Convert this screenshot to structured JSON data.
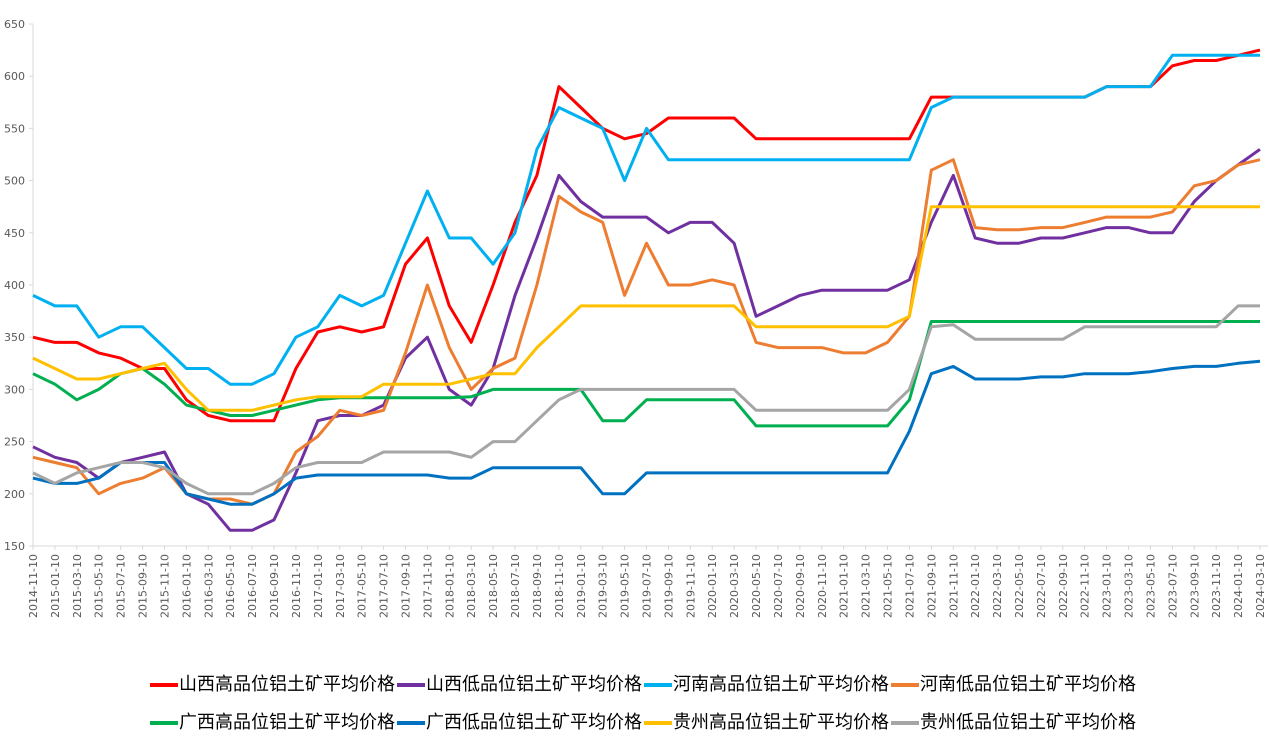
{
  "chart_data": {
    "type": "line",
    "legend": "bottom",
    "categories": [
      "2014-11-10",
      "2015-01-10",
      "2015-03-10",
      "2015-05-10",
      "2015-07-10",
      "2015-09-10",
      "2015-11-10",
      "2016-01-10",
      "2016-03-10",
      "2016-05-10",
      "2016-07-10",
      "2016-09-10",
      "2016-11-10",
      "2017-01-10",
      "2017-03-10",
      "2017-05-10",
      "2017-07-10",
      "2017-09-10",
      "2017-11-10",
      "2018-01-10",
      "2018-03-10",
      "2018-05-10",
      "2018-07-10",
      "2018-09-10",
      "2018-11-10",
      "2019-01-10",
      "2019-03-10",
      "2019-05-10",
      "2019-07-10",
      "2019-09-10",
      "2019-11-10",
      "2020-01-10",
      "2020-03-10",
      "2020-05-10",
      "2020-07-10",
      "2020-09-10",
      "2020-11-10",
      "2021-01-10",
      "2021-03-10",
      "2021-05-10",
      "2021-07-10",
      "2021-09-10",
      "2021-11-10",
      "2022-01-10",
      "2022-03-10",
      "2022-05-10",
      "2022-07-10",
      "2022-09-10",
      "2022-11-10",
      "2023-01-10",
      "2023-03-10",
      "2023-05-10",
      "2023-07-10",
      "2023-09-10",
      "2023-11-10",
      "2024-01-10",
      "2024-03-10"
    ],
    "ylim": [
      150,
      650
    ],
    "yticks": [
      150,
      200,
      250,
      300,
      350,
      400,
      450,
      500,
      550,
      600,
      650
    ],
    "series": [
      {
        "name": "山西高品位铝土矿平均价格",
        "color": "#ff0000",
        "values": [
          350,
          345,
          345,
          335,
          330,
          320,
          320,
          290,
          275,
          270,
          270,
          270,
          320,
          355,
          360,
          355,
          360,
          420,
          445,
          380,
          345,
          400,
          460,
          505,
          590,
          570,
          550,
          540,
          545,
          560,
          560,
          560,
          560,
          540,
          540,
          540,
          540,
          540,
          540,
          540,
          540,
          580,
          580,
          580,
          580,
          580,
          580,
          580,
          580,
          590,
          590,
          590,
          610,
          615,
          615,
          620,
          625
        ]
      },
      {
        "name": "山西低品位铝土矿平均价格",
        "color": "#7030a0",
        "values": [
          245,
          235,
          230,
          215,
          230,
          235,
          240,
          200,
          190,
          165,
          165,
          175,
          220,
          270,
          275,
          275,
          285,
          330,
          350,
          300,
          285,
          320,
          390,
          445,
          505,
          480,
          465,
          465,
          465,
          450,
          460,
          460,
          440,
          370,
          380,
          390,
          395,
          395,
          395,
          395,
          405,
          460,
          505,
          445,
          440,
          440,
          445,
          445,
          450,
          455,
          455,
          450,
          450,
          480,
          500,
          515,
          530
        ]
      },
      {
        "name": "河南高品位铝土矿平均价格",
        "color": "#00b0f0",
        "values": [
          390,
          380,
          380,
          350,
          360,
          360,
          340,
          320,
          320,
          305,
          305,
          315,
          350,
          360,
          390,
          380,
          390,
          440,
          490,
          445,
          445,
          420,
          450,
          530,
          570,
          560,
          550,
          500,
          550,
          520,
          520,
          520,
          520,
          520,
          520,
          520,
          520,
          520,
          520,
          520,
          520,
          570,
          580,
          580,
          580,
          580,
          580,
          580,
          580,
          590,
          590,
          590,
          620,
          620,
          620,
          620,
          620
        ]
      },
      {
        "name": "河南低品位铝土矿平均价格",
        "color": "#ed7d31",
        "values": [
          235,
          230,
          225,
          200,
          210,
          215,
          225,
          200,
          195,
          195,
          190,
          200,
          240,
          255,
          280,
          275,
          280,
          335,
          400,
          340,
          300,
          320,
          330,
          400,
          485,
          470,
          460,
          390,
          440,
          400,
          400,
          405,
          400,
          345,
          340,
          340,
          340,
          335,
          335,
          345,
          370,
          510,
          520,
          455,
          453,
          453,
          455,
          455,
          460,
          465,
          465,
          465,
          470,
          495,
          500,
          515,
          520
        ]
      },
      {
        "name": "广西高品位铝土矿平均价格",
        "color": "#00b050",
        "values": [
          315,
          305,
          290,
          300,
          315,
          320,
          305,
          285,
          280,
          275,
          275,
          280,
          285,
          290,
          292,
          292,
          292,
          292,
          292,
          292,
          293,
          300,
          300,
          300,
          300,
          300,
          270,
          270,
          290,
          290,
          290,
          290,
          290,
          265,
          265,
          265,
          265,
          265,
          265,
          265,
          290,
          365,
          365,
          365,
          365,
          365,
          365,
          365,
          365,
          365,
          365,
          365,
          365,
          365,
          365,
          365,
          365
        ]
      },
      {
        "name": "广西低品位铝土矿平均价格",
        "color": "#0070c0",
        "values": [
          215,
          210,
          210,
          215,
          230,
          230,
          230,
          200,
          195,
          190,
          190,
          200,
          215,
          218,
          218,
          218,
          218,
          218,
          218,
          215,
          215,
          225,
          225,
          225,
          225,
          225,
          200,
          200,
          220,
          220,
          220,
          220,
          220,
          220,
          220,
          220,
          220,
          220,
          220,
          220,
          260,
          315,
          322,
          310,
          310,
          310,
          312,
          312,
          315,
          315,
          315,
          317,
          320,
          322,
          322,
          325,
          327
        ]
      },
      {
        "name": "贵州高品位铝土矿平均价格",
        "color": "#ffc000",
        "values": [
          330,
          320,
          310,
          310,
          315,
          320,
          325,
          300,
          280,
          280,
          280,
          285,
          290,
          293,
          293,
          293,
          305,
          305,
          305,
          305,
          310,
          315,
          315,
          340,
          360,
          380,
          380,
          380,
          380,
          380,
          380,
          380,
          380,
          360,
          360,
          360,
          360,
          360,
          360,
          360,
          370,
          475,
          475,
          475,
          475,
          475,
          475,
          475,
          475,
          475,
          475,
          475,
          475,
          475,
          475,
          475,
          475
        ]
      },
      {
        "name": "贵州低品位铝土矿平均价格",
        "color": "#a5a5a5",
        "values": [
          220,
          210,
          220,
          225,
          230,
          230,
          225,
          210,
          200,
          200,
          200,
          210,
          225,
          230,
          230,
          230,
          240,
          240,
          240,
          240,
          235,
          250,
          250,
          270,
          290,
          300,
          300,
          300,
          300,
          300,
          300,
          300,
          300,
          280,
          280,
          280,
          280,
          280,
          280,
          280,
          300,
          360,
          362,
          348,
          348,
          348,
          348,
          348,
          360,
          360,
          360,
          360,
          360,
          360,
          360,
          380,
          380
        ]
      }
    ]
  }
}
